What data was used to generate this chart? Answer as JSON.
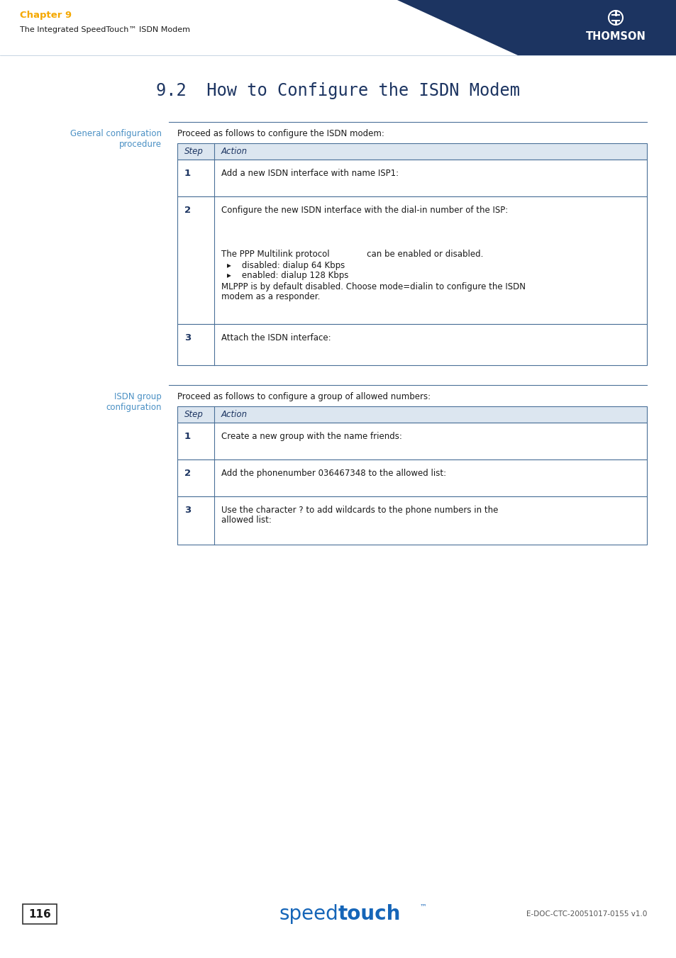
{
  "page_bg": "#ffffff",
  "header_bg": "#1c3461",
  "chapter_label": "Chapter 9",
  "chapter_label_color": "#f5a800",
  "chapter_subtitle": "The Integrated SpeedTouch™ ISDN Modem",
  "chapter_subtitle_color": "#1c1c1c",
  "page_title": "9.2  How to Configure the ISDN Modem",
  "page_title_color": "#1c3461",
  "section1_label": "General configuration\nprocedure",
  "section1_label_color": "#4a90c4",
  "section1_intro": "Proceed as follows to configure the ISDN modem:",
  "section2_label": "ISDN group\nconfiguration",
  "section2_label_color": "#4a90c4",
  "section2_intro": "Proceed as follows to configure a group of allowed numbers:",
  "table_border_color": "#4a7098",
  "table_header_bg": "#dce6f0",
  "table_text_color": "#1c3461",
  "footer_text": "E-DOC-CTC-20051017-0155 v1.0",
  "footer_page": "116",
  "table1_row1_action": "Add a new ISDN interface with name ISP1:",
  "table1_row2_line1": "Configure the new ISDN interface with the dial-in number of the ISP:",
  "table1_row2_line2": "The PPP Multilink protocol              can be enabled or disabled.",
  "table1_row2_line3": "▸    disabled: dialup 64 Kbps",
  "table1_row2_line4": "▸    enabled: dialup 128 Kbps",
  "table1_row2_line5": "MLPPP is by default disabled. Choose mode=dialin to configure the ISDN",
  "table1_row2_line6": "modem as a responder.",
  "table1_row3_action": "Attach the ISDN interface:",
  "table2_row1_action": "Create a new group with the name friends:",
  "table2_row2_action": "Add the phonenumber 036467348 to the allowed list:",
  "table2_row3_line1": "Use the character ? to add wildcards to the phone numbers in the",
  "table2_row3_line2": "allowed list:"
}
